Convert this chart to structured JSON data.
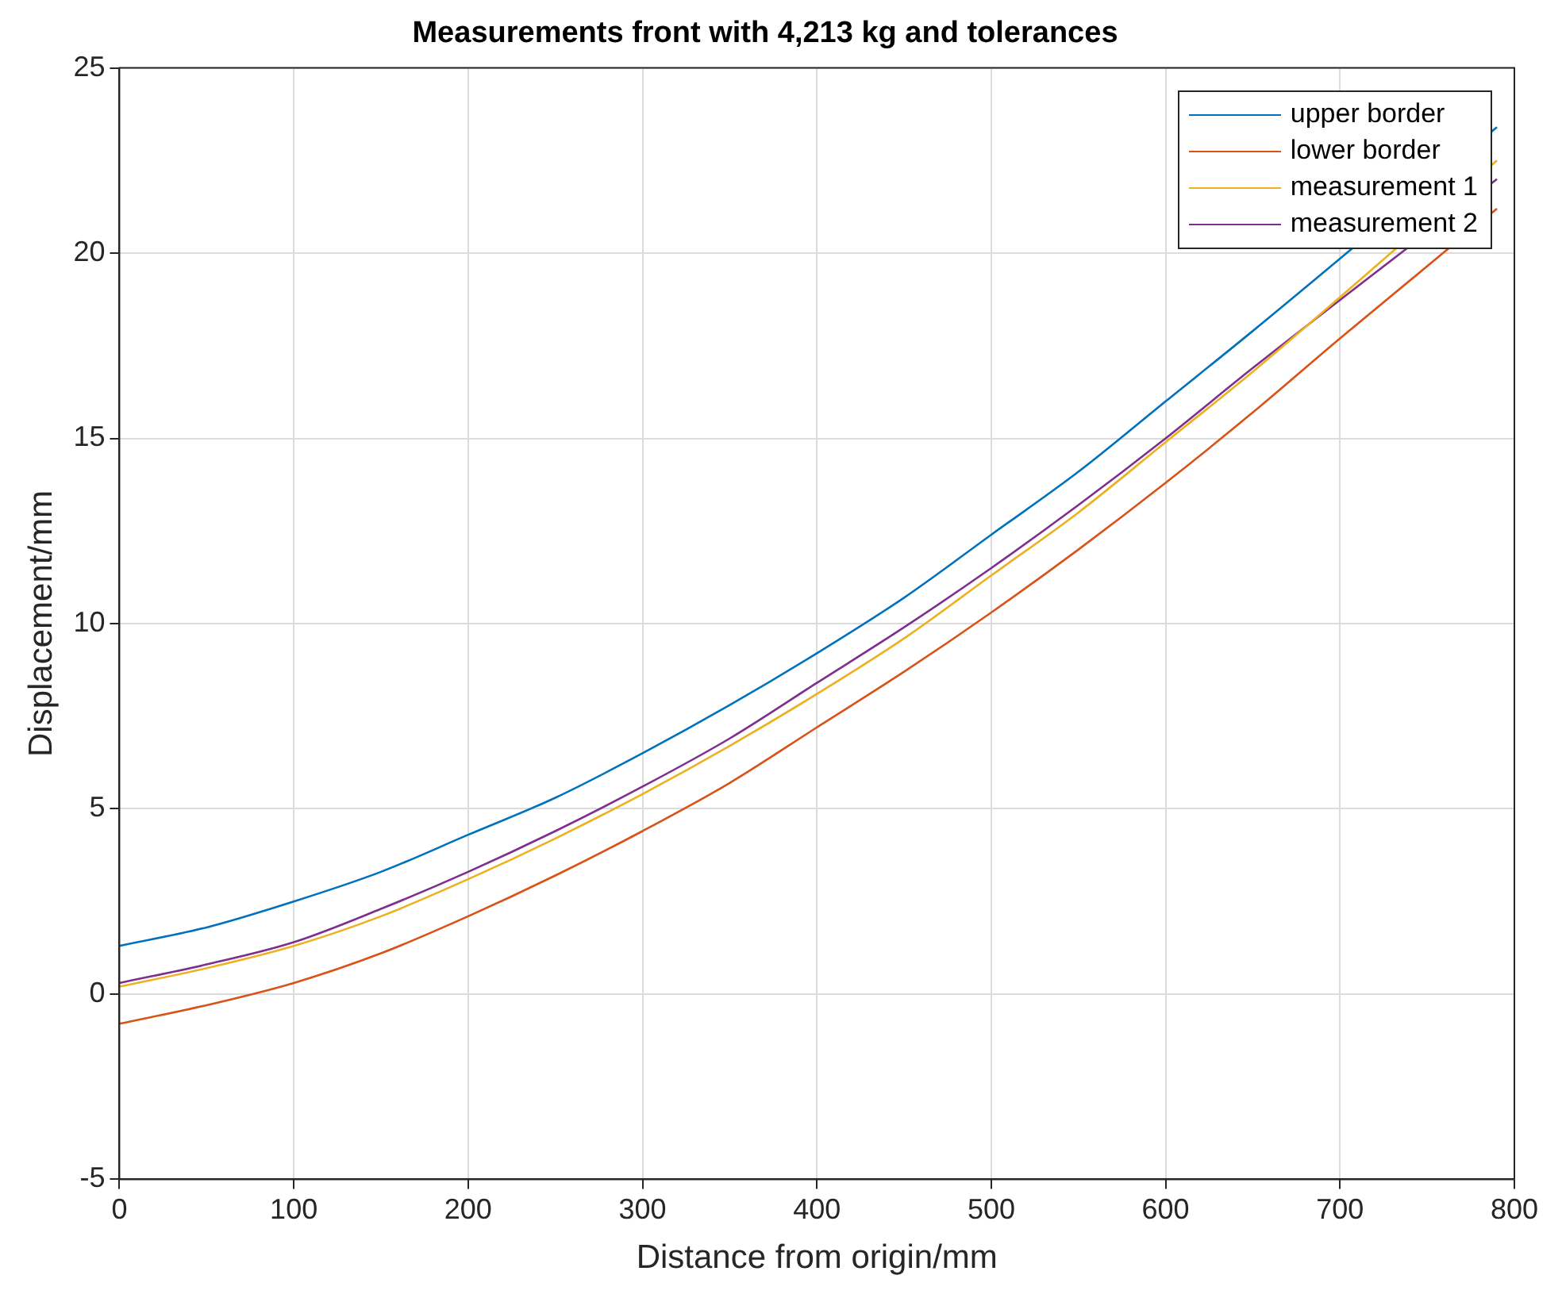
{
  "chart_data": {
    "type": "line",
    "title": "Measurements front with 4,213 kg and tolerances",
    "xlabel": "Distance from origin/mm",
    "ylabel": "Displacement/mm",
    "x": [
      0,
      50,
      100,
      150,
      200,
      250,
      300,
      350,
      400,
      450,
      500,
      550,
      600,
      650,
      700,
      750,
      790
    ],
    "series": [
      {
        "name": "upper border",
        "color": "#0072bd",
        "values": [
          1.3,
          1.8,
          2.5,
          3.3,
          4.3,
          5.3,
          6.5,
          7.8,
          9.2,
          10.7,
          12.4,
          14.1,
          16.0,
          17.9,
          null,
          null,
          23.4
        ]
      },
      {
        "name": "lower border",
        "color": "#d95319",
        "values": [
          -0.8,
          -0.3,
          0.3,
          1.1,
          2.1,
          3.2,
          4.4,
          5.7,
          7.2,
          8.7,
          10.3,
          12.0,
          13.8,
          15.7,
          17.7,
          null,
          21.2
        ]
      },
      {
        "name": "measurement 1",
        "color": "#edb120",
        "values": [
          0.2,
          0.7,
          1.3,
          2.1,
          3.1,
          4.2,
          5.4,
          6.7,
          8.1,
          9.6,
          11.3,
          13.0,
          14.9,
          16.8,
          null,
          null,
          22.5
        ]
      },
      {
        "name": "measurement 2",
        "color": "#7e2f8e",
        "values": [
          0.3,
          0.8,
          1.4,
          2.3,
          3.3,
          4.4,
          5.6,
          6.9,
          8.4,
          9.9,
          11.5,
          13.2,
          15.0,
          16.9,
          null,
          null,
          22.0
        ]
      }
    ],
    "xlim": [
      0,
      800
    ],
    "xticks": [
      0,
      100,
      200,
      300,
      400,
      500,
      600,
      700,
      800
    ],
    "ylim": [
      -5,
      25
    ],
    "yticks": [
      -5,
      0,
      5,
      10,
      15,
      20,
      25
    ],
    "grid": true,
    "legend": "top right",
    "marker": "none",
    "line_style": "solid"
  }
}
